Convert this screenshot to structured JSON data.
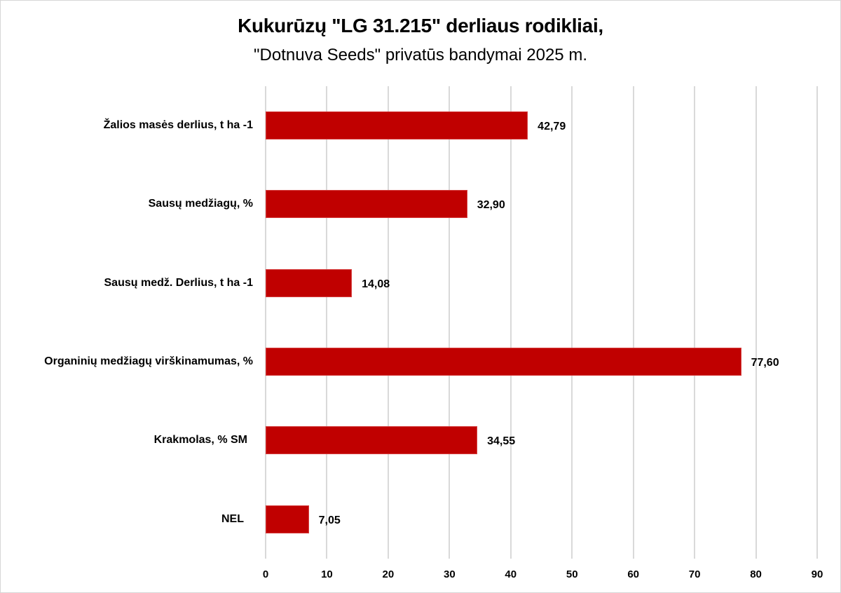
{
  "chart_data": {
    "type": "bar",
    "orientation": "horizontal",
    "title": "Kukurūzų \"LG 31.215\" derliaus rodikliai,",
    "subtitle": "\"Dotnuva Seeds\" privatūs bandymai 2025 m.",
    "categories": [
      "Žalios masės derlius, t ha -1",
      "Sausų medžiagų, %",
      "Sausų medž. Derlius, t ha -1",
      "Organinių medžiagų virškinamumas, %",
      "Krakmolas, % SM",
      "NEL"
    ],
    "values": [
      42.79,
      32.9,
      14.08,
      77.6,
      34.55,
      7.05
    ],
    "value_labels": [
      "42,79",
      "32,90",
      "14,08",
      "77,60",
      "34,55",
      "7,05"
    ],
    "xlabel": "",
    "ylabel": "",
    "xlim": [
      0,
      90
    ],
    "x_ticks": [
      "0",
      "10",
      "20",
      "30",
      "40",
      "50",
      "60",
      "70",
      "80",
      "90"
    ],
    "grid": "vertical",
    "legend": "none",
    "bar_color": "#c00000"
  }
}
